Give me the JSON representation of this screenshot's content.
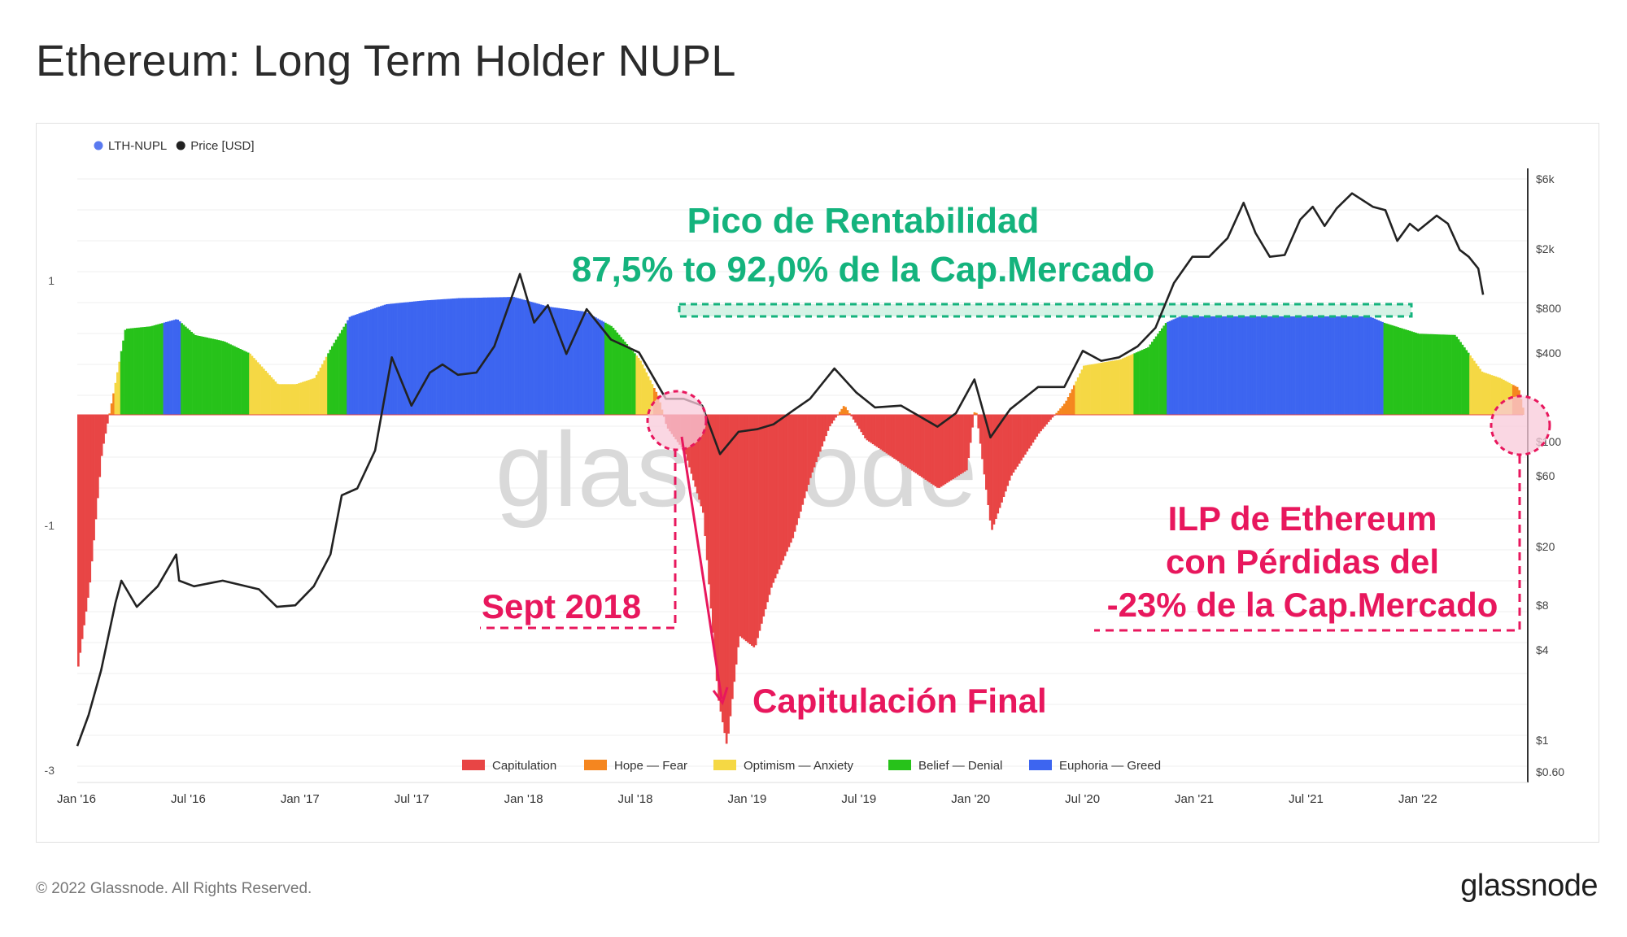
{
  "page": {
    "title": "Ethereum: Long Term Holder NUPL",
    "copyright": "© 2022 Glassnode. All Rights Reserved.",
    "logo": "glassnode",
    "watermark": "glassnode"
  },
  "legend_top": [
    {
      "label": "LTH-NUPL",
      "color": "#5a7af0"
    },
    {
      "label": "Price [USD]",
      "color": "#222222"
    }
  ],
  "legend_bottom": [
    {
      "label": "Capitulation",
      "color": "#e84545"
    },
    {
      "label": "Hope — Fear",
      "color": "#f5861f"
    },
    {
      "label": "Optimism — Anxiety",
      "color": "#f5d844"
    },
    {
      "label": "Belief — Denial",
      "color": "#27c21a"
    },
    {
      "label": "Euphoria — Greed",
      "color": "#3d65f0"
    }
  ],
  "annotations": {
    "peak_title": "Pico de Rentabilidad",
    "peak_range": "87,5% to 92,0% de la Cap.Mercado",
    "sept_2018": "Sept 2018",
    "final_capitulation": "Capitulación Final",
    "ilp_line1": "ILP de Ethereum",
    "ilp_line2": "con Pérdidas del",
    "ilp_line3": "-23% de la Cap.Mercado",
    "colors": {
      "green": "#14b37d",
      "pink": "#e8175d"
    }
  },
  "chart_data": {
    "type": "area",
    "title": "Ethereum: Long Term Holder NUPL",
    "x_ticks": [
      "Jan '16",
      "Jul '16",
      "Jan '17",
      "Jul '17",
      "Jan '18",
      "Jul '18",
      "Jan '19",
      "Jul '19",
      "Jan '20",
      "Jul '20",
      "Jan '21",
      "Jul '21",
      "Jan '22"
    ],
    "x_range": [
      "2016-01-01",
      "2022-09-01"
    ],
    "y_left": {
      "ticks": [
        "1",
        "-1",
        "-3"
      ],
      "range": [
        -3,
        1.6
      ]
    },
    "y_right": {
      "scale": "log",
      "ticks": [
        "$6k",
        "$2k",
        "$800",
        "$400",
        "$100",
        "$60",
        "$20",
        "$8",
        "$4",
        "$1",
        "$0.60"
      ]
    },
    "series": [
      {
        "name": "LTH-NUPL",
        "color_by_zone": true,
        "points": [
          [
            "2016-01-01",
            -2.05
          ],
          [
            "2016-01-20",
            -1.4
          ],
          [
            "2016-02-10",
            -0.3
          ],
          [
            "2016-03-01",
            0.2
          ],
          [
            "2016-03-20",
            0.7
          ],
          [
            "2016-05-01",
            0.72
          ],
          [
            "2016-06-15",
            0.78
          ],
          [
            "2016-07-15",
            0.65
          ],
          [
            "2016-09-01",
            0.6
          ],
          [
            "2016-10-15",
            0.5
          ],
          [
            "2016-12-01",
            0.25
          ],
          [
            "2017-01-01",
            0.25
          ],
          [
            "2017-02-01",
            0.3
          ],
          [
            "2017-03-01",
            0.55
          ],
          [
            "2017-04-01",
            0.8
          ],
          [
            "2017-06-01",
            0.9
          ],
          [
            "2017-08-01",
            0.93
          ],
          [
            "2017-10-01",
            0.95
          ],
          [
            "2018-01-01",
            0.96
          ],
          [
            "2018-03-01",
            0.88
          ],
          [
            "2018-05-01",
            0.84
          ],
          [
            "2018-06-15",
            0.72
          ],
          [
            "2018-08-01",
            0.45
          ],
          [
            "2018-09-01",
            0.15
          ],
          [
            "2018-09-15",
            -0.1
          ],
          [
            "2018-10-15",
            -0.3
          ],
          [
            "2018-11-15",
            -0.8
          ],
          [
            "2018-12-10",
            -2.3
          ],
          [
            "2018-12-25",
            -2.7
          ],
          [
            "2019-01-15",
            -1.8
          ],
          [
            "2019-02-10",
            -1.9
          ],
          [
            "2019-03-10",
            -1.4
          ],
          [
            "2019-04-15",
            -1.0
          ],
          [
            "2019-05-15",
            -0.5
          ],
          [
            "2019-06-15",
            -0.1
          ],
          [
            "2019-07-10",
            0.08
          ],
          [
            "2019-08-15",
            -0.2
          ],
          [
            "2019-10-15",
            -0.4
          ],
          [
            "2019-12-15",
            -0.6
          ],
          [
            "2020-02-01",
            -0.45
          ],
          [
            "2020-02-15",
            0.08
          ],
          [
            "2020-03-13",
            -0.95
          ],
          [
            "2020-04-15",
            -0.5
          ],
          [
            "2020-06-01",
            -0.15
          ],
          [
            "2020-07-15",
            0.1
          ],
          [
            "2020-08-15",
            0.4
          ],
          [
            "2020-10-15",
            0.45
          ],
          [
            "2020-12-01",
            0.55
          ],
          [
            "2020-12-31",
            0.75
          ],
          [
            "2021-02-01",
            0.82
          ],
          [
            "2021-05-10",
            0.88
          ],
          [
            "2021-08-01",
            0.83
          ],
          [
            "2021-11-10",
            0.86
          ],
          [
            "2022-01-01",
            0.75
          ],
          [
            "2022-03-01",
            0.66
          ],
          [
            "2022-05-01",
            0.65
          ],
          [
            "2022-06-15",
            0.35
          ],
          [
            "2022-07-15",
            0.3
          ],
          [
            "2022-08-15",
            0.22
          ],
          [
            "2022-09-01",
            -0.15
          ]
        ]
      },
      {
        "name": "Price [USD]",
        "color": "#222222",
        "points": [
          [
            "2016-01-01",
            0.93
          ],
          [
            "2016-01-20",
            1.5
          ],
          [
            "2016-02-10",
            3.0
          ],
          [
            "2016-03-05",
            8.5
          ],
          [
            "2016-03-15",
            12.0
          ],
          [
            "2016-04-10",
            8.0
          ],
          [
            "2016-05-15",
            11.0
          ],
          [
            "2016-06-15",
            18.0
          ],
          [
            "2016-06-20",
            12.0
          ],
          [
            "2016-07-15",
            11.0
          ],
          [
            "2016-09-01",
            12.0
          ],
          [
            "2016-11-01",
            10.5
          ],
          [
            "2016-12-01",
            8.0
          ],
          [
            "2017-01-01",
            8.2
          ],
          [
            "2017-02-01",
            11.0
          ],
          [
            "2017-03-01",
            18.0
          ],
          [
            "2017-03-20",
            45.0
          ],
          [
            "2017-04-15",
            50.0
          ],
          [
            "2017-05-15",
            90.0
          ],
          [
            "2017-06-12",
            380.0
          ],
          [
            "2017-07-15",
            180.0
          ],
          [
            "2017-08-15",
            300.0
          ],
          [
            "2017-09-05",
            340.0
          ],
          [
            "2017-10-01",
            290.0
          ],
          [
            "2017-11-01",
            300.0
          ],
          [
            "2017-12-01",
            450.0
          ],
          [
            "2018-01-13",
            1380.0
          ],
          [
            "2018-02-06",
            650.0
          ],
          [
            "2018-03-01",
            850.0
          ],
          [
            "2018-04-01",
            400.0
          ],
          [
            "2018-05-05",
            800.0
          ],
          [
            "2018-06-15",
            500.0
          ],
          [
            "2018-08-01",
            410.0
          ],
          [
            "2018-09-15",
            200.0
          ],
          [
            "2018-10-15",
            200.0
          ],
          [
            "2018-11-15",
            180.0
          ],
          [
            "2018-12-15",
            85.0
          ],
          [
            "2019-01-15",
            120.0
          ],
          [
            "2019-02-15",
            125.0
          ],
          [
            "2019-03-15",
            135.0
          ],
          [
            "2019-04-15",
            165.0
          ],
          [
            "2019-05-15",
            200.0
          ],
          [
            "2019-06-25",
            320.0
          ],
          [
            "2019-08-01",
            220.0
          ],
          [
            "2019-09-01",
            175.0
          ],
          [
            "2019-10-15",
            180.0
          ],
          [
            "2019-12-15",
            130.0
          ],
          [
            "2020-01-15",
            160.0
          ],
          [
            "2020-02-15",
            270.0
          ],
          [
            "2020-03-13",
            110.0
          ],
          [
            "2020-04-15",
            170.0
          ],
          [
            "2020-06-01",
            240.0
          ],
          [
            "2020-07-15",
            240.0
          ],
          [
            "2020-08-15",
            420.0
          ],
          [
            "2020-09-15",
            360.0
          ],
          [
            "2020-10-15",
            380.0
          ],
          [
            "2020-11-15",
            450.0
          ],
          [
            "2020-12-15",
            600.0
          ],
          [
            "2021-01-15",
            1200.0
          ],
          [
            "2021-02-15",
            1800.0
          ],
          [
            "2021-03-15",
            1800.0
          ],
          [
            "2021-04-15",
            2400.0
          ],
          [
            "2021-05-12",
            4150.0
          ],
          [
            "2021-06-01",
            2600.0
          ],
          [
            "2021-06-25",
            1800.0
          ],
          [
            "2021-07-20",
            1850.0
          ],
          [
            "2021-08-15",
            3200.0
          ],
          [
            "2021-09-05",
            3900.0
          ],
          [
            "2021-09-25",
            2900.0
          ],
          [
            "2021-10-15",
            3800.0
          ],
          [
            "2021-11-10",
            4800.0
          ],
          [
            "2021-12-15",
            3900.0
          ],
          [
            "2022-01-05",
            3700.0
          ],
          [
            "2022-01-25",
            2300.0
          ],
          [
            "2022-02-15",
            3000.0
          ],
          [
            "2022-03-01",
            2700.0
          ],
          [
            "2022-04-01",
            3400.0
          ],
          [
            "2022-04-20",
            3000.0
          ],
          [
            "2022-05-10",
            2000.0
          ],
          [
            "2022-05-25",
            1800.0
          ],
          [
            "2022-06-10",
            1500.0
          ],
          [
            "2022-06-18",
            1000.0
          ]
        ]
      }
    ],
    "zones": [
      {
        "name": "Capitulation",
        "from": -10,
        "to": 0,
        "color": "#e84545"
      },
      {
        "name": "Hope — Fear",
        "from": 0,
        "to": 0.25,
        "color": "#f5861f"
      },
      {
        "name": "Optimism — Anxiety",
        "from": 0.25,
        "to": 0.5,
        "color": "#f5d844"
      },
      {
        "name": "Belief — Denial",
        "from": 0.5,
        "to": 0.75,
        "color": "#27c21a"
      },
      {
        "name": "Euphoria — Greed",
        "from": 0.75,
        "to": 10,
        "color": "#3d65f0"
      }
    ],
    "legend_position": "top-left",
    "grid": true
  }
}
